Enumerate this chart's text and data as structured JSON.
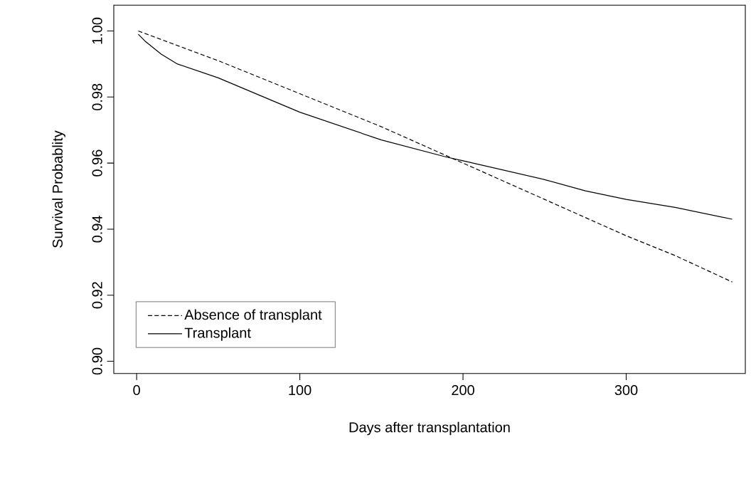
{
  "chart_data": {
    "type": "line",
    "xlabel": "Days after transplantation",
    "ylabel": "Survival Probablity",
    "xlim": [
      -14,
      373
    ],
    "ylim": [
      0.8963,
      1.0078
    ],
    "xticks": [
      0,
      100,
      200,
      300
    ],
    "yticks": [
      {
        "value": 0.9,
        "label": "0.90"
      },
      {
        "value": 0.92,
        "label": "0.92"
      },
      {
        "value": 0.94,
        "label": "0.94"
      },
      {
        "value": 0.96,
        "label": "0.96"
      },
      {
        "value": 0.98,
        "label": "0.98"
      },
      {
        "value": 1.0,
        "label": "1.00"
      }
    ],
    "grid": false,
    "legend": "bottom left",
    "marker": "none",
    "series": [
      {
        "name": "Absence of transplant",
        "color": "#000000",
        "line_style": "dashed",
        "x": [
          1,
          50,
          100,
          150,
          200,
          250,
          300,
          330,
          365
        ],
        "values": [
          1.0,
          0.991,
          0.981,
          0.971,
          0.96,
          0.949,
          0.938,
          0.932,
          0.924
        ]
      },
      {
        "name": "Transplant",
        "color": "#000000",
        "line_style": "solid",
        "x": [
          1,
          5,
          15,
          25,
          50,
          100,
          150,
          190,
          200,
          250,
          275,
          300,
          330,
          365
        ],
        "values": [
          0.999,
          0.997,
          0.993,
          0.99,
          0.9858,
          0.9754,
          0.967,
          0.9618,
          0.9607,
          0.955,
          0.9516,
          0.949,
          0.9466,
          0.943
        ]
      }
    ]
  }
}
